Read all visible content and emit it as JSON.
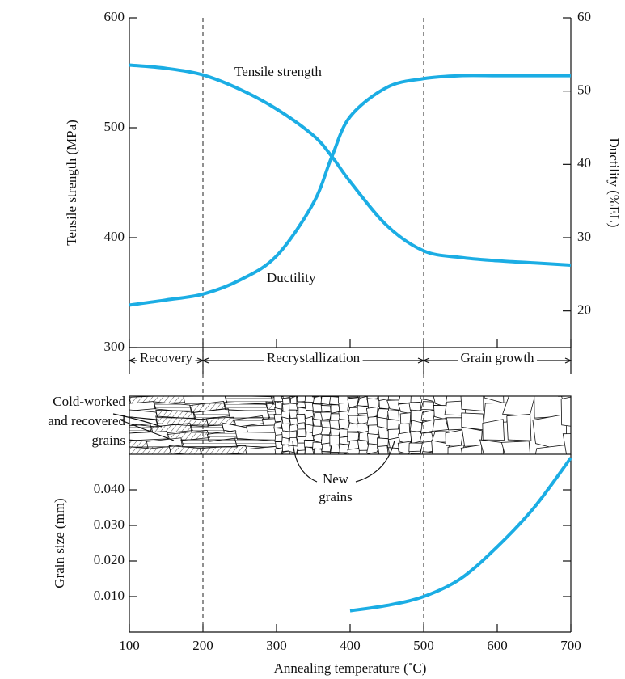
{
  "chart_data": [
    {
      "type": "line",
      "xlim": [
        100,
        700
      ],
      "ylim": [
        300,
        600
      ],
      "yticks": [
        300,
        400,
        500,
        600
      ],
      "y2lim": [
        15,
        60
      ],
      "y2ticks": [
        20,
        30,
        40,
        50,
        60
      ],
      "y_label": "Tensile strength (MPa)",
      "y2_label": "Ductility (%EL)",
      "x": [
        100,
        150,
        200,
        250,
        300,
        350,
        375,
        400,
        450,
        500,
        550,
        600,
        650,
        700
      ],
      "series": [
        {
          "name": "Tensile strength",
          "color": "#1badE4",
          "values": [
            557,
            554,
            548,
            535,
            517,
            493,
            474,
            451,
            411,
            388,
            382,
            379,
            377,
            375
          ]
        },
        {
          "name": "Ductility",
          "color": "#1badE4",
          "axis": "y2",
          "values": [
            20.8,
            21.5,
            22.3,
            24.2,
            27.5,
            34.7,
            41,
            46.5,
            50.5,
            51.7,
            52.1,
            52.1,
            52.1,
            52.1
          ]
        }
      ],
      "regions": [
        {
          "label": "Recovery",
          "range": [
            100,
            200
          ]
        },
        {
          "label": "Recrystallization",
          "range": [
            200,
            500
          ]
        },
        {
          "label": "Grain growth",
          "range": [
            500,
            700
          ]
        }
      ]
    },
    {
      "type": "line",
      "xlim": [
        100,
        700
      ],
      "xticks": [
        100,
        200,
        300,
        400,
        500,
        600,
        700
      ],
      "ylim": [
        0,
        0.05
      ],
      "yticks": [
        {
          "value": 0.01,
          "label": "0.010"
        },
        {
          "value": 0.02,
          "label": "0.020"
        },
        {
          "value": 0.03,
          "label": "0.030"
        },
        {
          "value": 0.04,
          "label": "0.040"
        }
      ],
      "y_label": "Grain size (mm)",
      "x_label": "Annealing temperature (˚C)",
      "x": [
        400,
        450,
        500,
        550,
        600,
        650,
        700
      ],
      "series": [
        {
          "name": "Grain size",
          "color": "#1badE4",
          "values": [
            0.006,
            0.0075,
            0.01,
            0.015,
            0.024,
            0.035,
            0.049
          ]
        }
      ]
    }
  ],
  "annotations": {
    "cold_worked": [
      "Cold-worked",
      "and recovered",
      "grains"
    ],
    "new_grains": [
      "New",
      "grains"
    ]
  }
}
